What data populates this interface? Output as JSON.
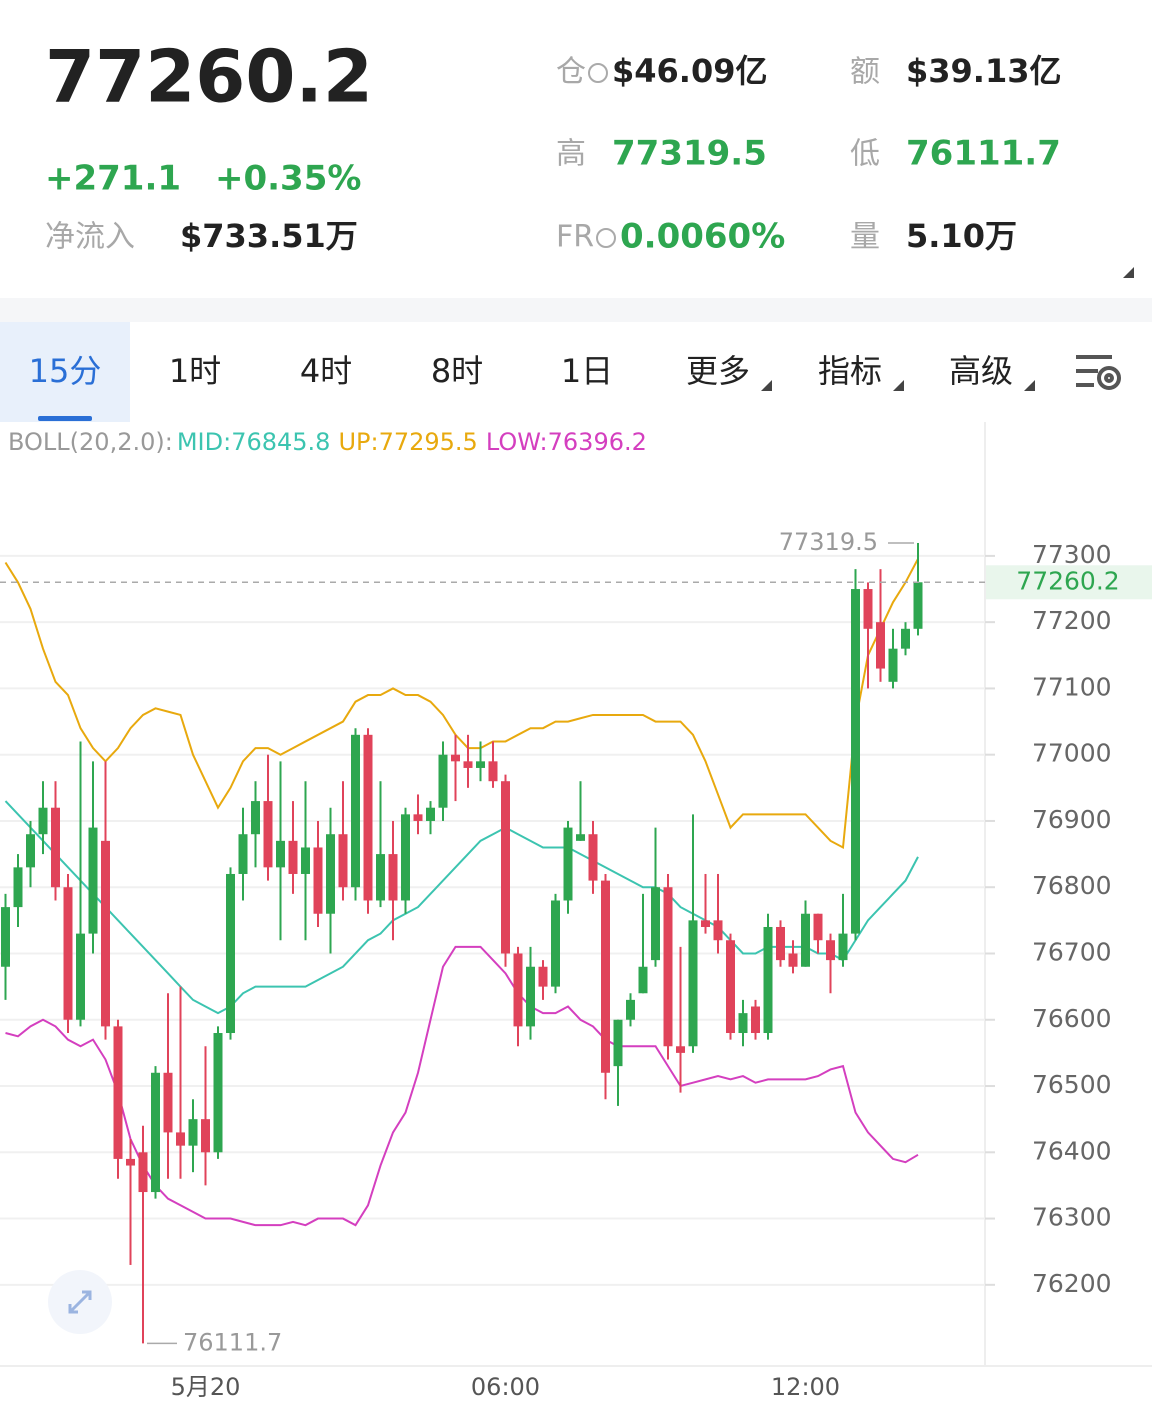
{
  "header": {
    "price": "77260.2",
    "change": "+271.1",
    "change_pct": "+0.35%",
    "net_inflow_label": "净流入",
    "net_inflow": "$733.51万",
    "stats": [
      {
        "label": "仓",
        "value": "$46.09亿"
      },
      {
        "label": "额",
        "value": "$39.13亿"
      },
      {
        "label": "高",
        "value": "77319.5"
      },
      {
        "label": "低",
        "value": "76111.7"
      },
      {
        "label": "FR",
        "value": "0.0060%"
      },
      {
        "label": "量",
        "value": "5.10万"
      }
    ]
  },
  "tabs": [
    "15分",
    "1时",
    "4时",
    "8时",
    "1日",
    "更多",
    "指标",
    "高级"
  ],
  "chart_data": {
    "type": "candlestick",
    "indicator": "BOLL(20,2.0):",
    "up_color": "#2ea650",
    "down_color": "#e0435a",
    "categories": [
      null,
      null,
      null,
      null,
      null,
      null,
      null,
      null,
      null,
      null,
      null,
      null,
      null,
      null,
      null,
      null,
      "5月20",
      null,
      null,
      null,
      null,
      null,
      null,
      null,
      null,
      null,
      null,
      null,
      null,
      null,
      null,
      null,
      null,
      null,
      null,
      null,
      null,
      null,
      null,
      null,
      "06:00",
      null,
      null,
      null,
      null,
      null,
      null,
      null,
      null,
      null,
      null,
      null,
      null,
      null,
      null,
      null,
      null,
      null,
      null,
      null,
      null,
      null,
      null,
      null,
      "12:00",
      null,
      null,
      null,
      null,
      null,
      null,
      null,
      null,
      null
    ],
    "open": [
      76680,
      76770,
      76830,
      76880,
      76920,
      76800,
      76600,
      76730,
      76870,
      76590,
      76390,
      76400,
      76340,
      76520,
      76430,
      76410,
      76450,
      76400,
      76580,
      76820,
      76880,
      76930,
      76830,
      76870,
      76820,
      76860,
      76760,
      76880,
      76800,
      77030,
      76780,
      76850,
      76780,
      76910,
      76900,
      76920,
      77000,
      76990,
      76980,
      76990,
      76960,
      76700,
      76590,
      76680,
      76650,
      76780,
      76870,
      76880,
      76810,
      76530,
      76600,
      76640,
      76690,
      76800,
      76560,
      76560,
      76750,
      76750,
      76720,
      76580,
      76620,
      76580,
      76740,
      76700,
      76680,
      76760,
      76720,
      76690,
      76730,
      77250,
      77200,
      77110,
      77160,
      77190
    ],
    "close": [
      76770,
      76830,
      76880,
      76920,
      76800,
      76600,
      76730,
      76890,
      76590,
      76390,
      76380,
      76340,
      76520,
      76430,
      76410,
      76450,
      76400,
      76580,
      76820,
      76880,
      76930,
      76830,
      76870,
      76820,
      76860,
      76760,
      76880,
      76800,
      77030,
      76780,
      76850,
      76780,
      76910,
      76900,
      76920,
      77000,
      76990,
      76980,
      76990,
      76960,
      76700,
      76590,
      76680,
      76650,
      76780,
      76890,
      76880,
      76810,
      76520,
      76600,
      76630,
      76680,
      76800,
      76560,
      76550,
      76750,
      76740,
      76720,
      76580,
      76610,
      76580,
      76740,
      76690,
      76680,
      76760,
      76720,
      76690,
      76730,
      77250,
      77190,
      77130,
      77160,
      77190,
      77260.2
    ],
    "high": [
      76790,
      76850,
      76900,
      76960,
      76960,
      76820,
      77020,
      76990,
      76990,
      76600,
      76420,
      76440,
      76530,
      76640,
      76650,
      76480,
      76560,
      76590,
      76830,
      76920,
      76960,
      77000,
      76990,
      76930,
      76960,
      76900,
      76920,
      76960,
      77040,
      77040,
      76960,
      76900,
      76920,
      76940,
      76930,
      77020,
      77030,
      77030,
      77020,
      77020,
      76970,
      76710,
      76710,
      76690,
      76790,
      76900,
      76960,
      76900,
      76820,
      76600,
      76640,
      76790,
      76890,
      76820,
      76710,
      76910,
      76820,
      76820,
      76730,
      76630,
      76630,
      76760,
      76750,
      76720,
      76780,
      76760,
      76730,
      76790,
      77280,
      77260,
      77280,
      77190,
      77200,
      77319.5
    ],
    "low": [
      76630,
      76740,
      76800,
      76850,
      76780,
      76580,
      76590,
      76700,
      76570,
      76360,
      76230,
      76111.7,
      76330,
      76360,
      76360,
      76370,
      76350,
      76390,
      76570,
      76780,
      76830,
      76810,
      76720,
      76790,
      76720,
      76740,
      76700,
      76780,
      76780,
      76760,
      76770,
      76720,
      76760,
      76880,
      76880,
      76900,
      76930,
      76950,
      76960,
      76950,
      76680,
      76560,
      76570,
      76630,
      76640,
      76760,
      76870,
      76790,
      76480,
      76470,
      76590,
      76640,
      76680,
      76540,
      76490,
      76550,
      76730,
      76700,
      76570,
      76560,
      76570,
      76570,
      76680,
      76670,
      76680,
      76700,
      76640,
      76680,
      76720,
      77100,
      77110,
      77100,
      77150,
      77180
    ],
    "series": [
      {
        "name": "MID:",
        "color": "#3cc4b0",
        "values": [
          76930,
          76910,
          76890,
          76870,
          76850,
          76830,
          76810,
          76790,
          76770,
          76750,
          76730,
          76710,
          76690,
          76670,
          76650,
          76630,
          76620,
          76610,
          76620,
          76640,
          76650,
          76650,
          76650,
          76650,
          76650,
          76660,
          76670,
          76680,
          76700,
          76720,
          76730,
          76750,
          76760,
          76770,
          76790,
          76810,
          76830,
          76850,
          76870,
          76880,
          76890,
          76880,
          76870,
          76860,
          76860,
          76860,
          76850,
          76840,
          76830,
          76820,
          76810,
          76800,
          76800,
          76790,
          76770,
          76760,
          76750,
          76740,
          76720,
          76700,
          76700,
          76710,
          76710,
          76710,
          76710,
          76700,
          76700,
          76690,
          76720,
          76750,
          76770,
          76790,
          76810,
          76845.8
        ]
      },
      {
        "name": "UP:",
        "color": "#e8a90e",
        "values": [
          77290,
          77260,
          77220,
          77160,
          77110,
          77090,
          77040,
          77010,
          76990,
          77010,
          77040,
          77060,
          77070,
          77065,
          77060,
          77000,
          76960,
          76920,
          76950,
          76990,
          77010,
          77010,
          77000,
          77010,
          77020,
          77030,
          77040,
          77050,
          77080,
          77090,
          77090,
          77100,
          77090,
          77090,
          77080,
          77060,
          77030,
          77010,
          77010,
          77020,
          77020,
          77030,
          77040,
          77040,
          77050,
          77050,
          77055,
          77060,
          77060,
          77060,
          77060,
          77060,
          77050,
          77050,
          77050,
          77030,
          76990,
          76940,
          76890,
          76910,
          76910,
          76910,
          76910,
          76910,
          76910,
          76890,
          76870,
          76860,
          77050,
          77150,
          77190,
          77230,
          77260,
          77295.5
        ]
      },
      {
        "name": "LOW:",
        "color": "#d43fbf",
        "values": [
          76580,
          76575,
          76590,
          76600,
          76590,
          76570,
          76560,
          76570,
          76540,
          76490,
          76420,
          76380,
          76350,
          76330,
          76320,
          76310,
          76300,
          76300,
          76300,
          76295,
          76290,
          76290,
          76290,
          76295,
          76290,
          76300,
          76300,
          76300,
          76290,
          76320,
          76380,
          76430,
          76460,
          76520,
          76600,
          76680,
          76710,
          76710,
          76710,
          76690,
          76670,
          76640,
          76620,
          76610,
          76610,
          76620,
          76600,
          76590,
          76570,
          76560,
          76560,
          76560,
          76560,
          76530,
          76500,
          76505,
          76510,
          76515,
          76510,
          76515,
          76505,
          76510,
          76510,
          76510,
          76510,
          76515,
          76525,
          76530,
          76460,
          76430,
          76410,
          76390,
          76385,
          76396.2
        ]
      }
    ],
    "last_price": 77260.2,
    "ylim": [
      76079,
      77490
    ],
    "yticks": [
      76200,
      76300,
      76400,
      76500,
      76600,
      76700,
      76800,
      76900,
      77000,
      77100,
      77200,
      77300
    ],
    "grid": true
  }
}
